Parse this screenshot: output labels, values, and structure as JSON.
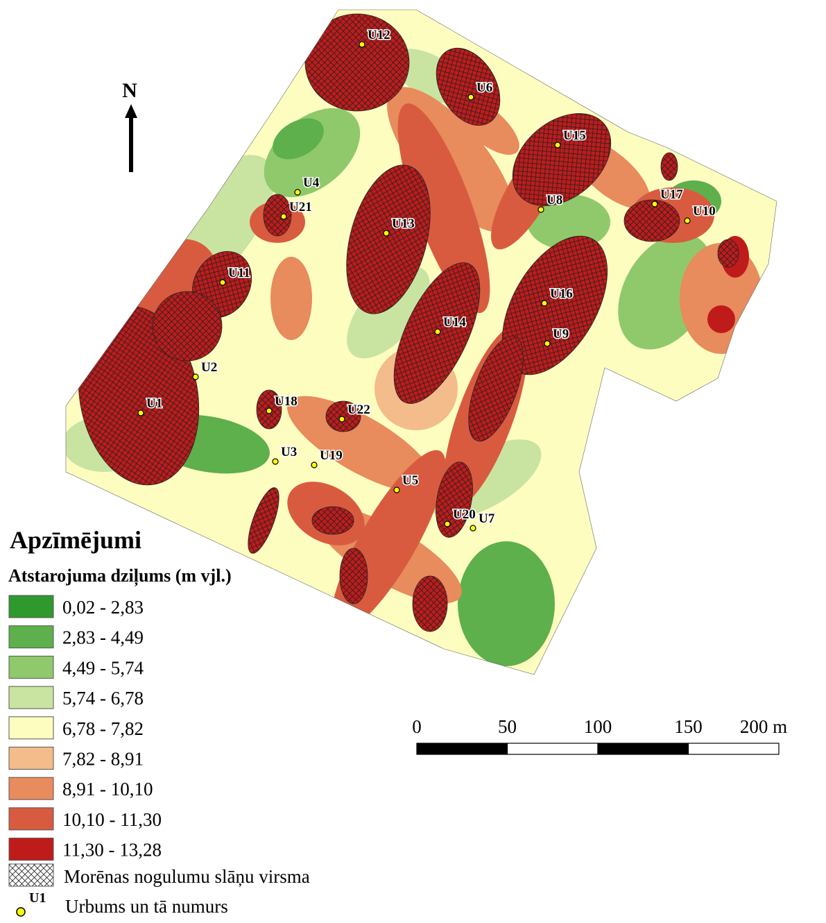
{
  "north": "N",
  "legend": {
    "title": "Apzīmējumi",
    "subtitle": "Atstarojuma dziļums (m vjl.)",
    "classes": [
      {
        "label": "0,02 - 2,83",
        "color": "#2e9a2e"
      },
      {
        "label": "2,83 - 4,49",
        "color": "#5db04b"
      },
      {
        "label": "4,49 - 5,74",
        "color": "#8fc96b"
      },
      {
        "label": "5,74 - 6,78",
        "color": "#c9e4a1"
      },
      {
        "label": "6,78 - 7,82",
        "color": "#fdfdc0"
      },
      {
        "label": "7,82 - 8,91",
        "color": "#f4bc8b"
      },
      {
        "label": "8,91 - 10,10",
        "color": "#e88b5d"
      },
      {
        "label": "10,10 - 11,30",
        "color": "#d95b3f"
      },
      {
        "label": "11,30 - 13,28",
        "color": "#c01b1b"
      }
    ],
    "hatch_label": "Morēnas nogulumu slāņu virsma",
    "borehole_symbol": "U1",
    "borehole_label": "Urbums un tā numurs"
  },
  "scale_bar": {
    "ticks": [
      0,
      50,
      100,
      150,
      {
        "value": 200,
        "label": "200 m"
      }
    ]
  },
  "boreholes": [
    "U12",
    "U6",
    "U15",
    "U4",
    "U21",
    "U13",
    "U8",
    "U17",
    "U10",
    "U11",
    "U16",
    "U14",
    "U9",
    "U2",
    "U1",
    "U18",
    "U22",
    "U3",
    "U19",
    "U5",
    "U20",
    "U7"
  ]
}
